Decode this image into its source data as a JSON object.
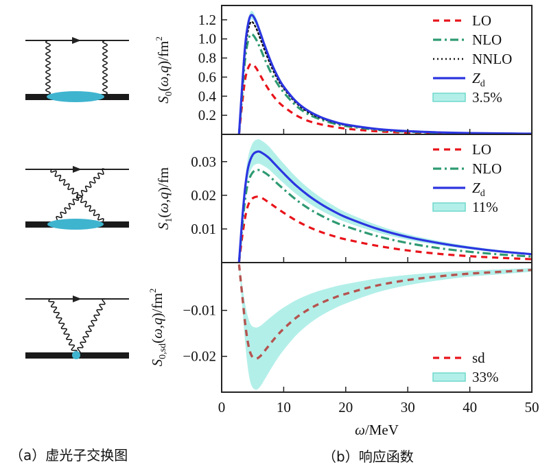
{
  "figure": {
    "caption_a": "（a）虚光子交换图",
    "caption_b": "（b）响应函数",
    "diagrams": [
      {
        "name": "box diagram",
        "type": "two-photon parallel exchange",
        "blob": "ellipse"
      },
      {
        "name": "crossed box diagram",
        "type": "two-photon crossed exchange",
        "blob": "ellipse"
      },
      {
        "name": "seagull diagram",
        "type": "two-photon exchange at a point vertex",
        "blob": "dot"
      }
    ],
    "colors": {
      "lo": "#e8141b",
      "nlo": "#2e9a72",
      "nnlo": "#111111",
      "zd": "#2b35e0",
      "band_fill": "#b3efe9",
      "band_edge": "#6fd8cc",
      "sd": "#b5534f",
      "diagram_blob": "#3fb4cf"
    }
  },
  "chart_data": [
    {
      "type": "line",
      "panel": "top",
      "ylabel": "S0(ω,q)/fm²",
      "ylabel_main": "S",
      "ylabel_sub": "0",
      "ylabel_rest": "(ω,q)/fm",
      "ylabel_sup": "2",
      "xlim": [
        0,
        50
      ],
      "ylim": [
        0,
        1.35
      ],
      "yticks": [
        0.2,
        0.4,
        0.6,
        0.8,
        1.0,
        1.2
      ],
      "ytick_labels": [
        "0.2",
        "0.4",
        "0.6",
        "0.8",
        "1.0",
        "1.2"
      ],
      "xticks": [
        10,
        20,
        30,
        40
      ],
      "legend_position": "top-right",
      "x": [
        2.8,
        3.3,
        3.8,
        4.3,
        4.8,
        5.5,
        6.3,
        7.0,
        8.0,
        9.0,
        10.0,
        12.0,
        14.0,
        16.0,
        18.0,
        20.0,
        25.0,
        30.0,
        35.0,
        40.0,
        45.0,
        50.0
      ],
      "series": [
        {
          "name": "LO",
          "style": "dashed",
          "values": [
            0.0,
            0.32,
            0.58,
            0.7,
            0.74,
            0.7,
            0.61,
            0.53,
            0.43,
            0.35,
            0.29,
            0.2,
            0.14,
            0.105,
            0.08,
            0.06,
            0.032,
            0.018,
            0.011,
            0.007,
            0.005,
            0.003
          ]
        },
        {
          "name": "NLO",
          "style": "dashdot",
          "values": [
            0.0,
            0.42,
            0.8,
            0.99,
            1.05,
            1.0,
            0.89,
            0.78,
            0.64,
            0.53,
            0.44,
            0.3,
            0.21,
            0.155,
            0.115,
            0.088,
            0.048,
            0.028,
            0.017,
            0.011,
            0.008,
            0.005
          ]
        },
        {
          "name": "NNLO",
          "style": "dotted",
          "values": [
            0.0,
            0.46,
            0.88,
            1.1,
            1.18,
            1.12,
            0.99,
            0.87,
            0.71,
            0.58,
            0.48,
            0.33,
            0.23,
            0.17,
            0.128,
            0.097,
            0.053,
            0.031,
            0.019,
            0.012,
            0.009,
            0.006
          ]
        },
        {
          "name": "Zd",
          "style": "solid",
          "values": [
            0.0,
            0.5,
            0.94,
            1.17,
            1.25,
            1.19,
            1.05,
            0.92,
            0.75,
            0.61,
            0.5,
            0.345,
            0.245,
            0.18,
            0.135,
            0.103,
            0.057,
            0.034,
            0.021,
            0.014,
            0.01,
            0.007
          ]
        }
      ],
      "band": {
        "name": "3.5%",
        "around": "Zd",
        "relative_uncertainty": 0.035
      },
      "legend": [
        {
          "label": "LO",
          "key": "lo",
          "style": "dashed"
        },
        {
          "label": "NLO",
          "key": "nlo",
          "style": "dashdot"
        },
        {
          "label": "NNLO",
          "key": "nnlo",
          "style": "dotted"
        },
        {
          "label": "Z",
          "sub": "d",
          "key": "zd",
          "style": "solid"
        },
        {
          "label": "3.5%",
          "key": "band",
          "style": "band"
        }
      ]
    },
    {
      "type": "line",
      "panel": "middle",
      "ylabel": "S1(ω,q)/fm",
      "ylabel_main": "S",
      "ylabel_sub": "1",
      "ylabel_rest": "(ω,q)/fm",
      "ylabel_sup": "",
      "xlim": [
        0,
        50
      ],
      "ylim": [
        0,
        0.0381
      ],
      "yticks": [
        0.01,
        0.02,
        0.03
      ],
      "ytick_labels": [
        "0.01",
        "0.02",
        "0.03"
      ],
      "xticks": [
        10,
        20,
        30,
        40
      ],
      "legend_position": "top-right",
      "x": [
        2.8,
        3.3,
        3.8,
        4.3,
        5.0,
        5.8,
        6.5,
        7.5,
        8.5,
        10.0,
        12.0,
        14.0,
        16.0,
        18.0,
        20.0,
        25.0,
        30.0,
        35.0,
        40.0,
        45.0,
        50.0
      ],
      "series": [
        {
          "name": "LO",
          "style": "dashed",
          "values": [
            0.0,
            0.0075,
            0.0135,
            0.0172,
            0.0191,
            0.0196,
            0.0192,
            0.018,
            0.0167,
            0.0148,
            0.0125,
            0.0106,
            0.0091,
            0.0079,
            0.0069,
            0.005,
            0.0036,
            0.0026,
            0.0019,
            0.0014,
            0.001
          ]
        },
        {
          "name": "NLO",
          "style": "dashdot",
          "values": [
            0.0,
            0.0105,
            0.019,
            0.024,
            0.0268,
            0.0275,
            0.0272,
            0.026,
            0.0243,
            0.0218,
            0.0187,
            0.0161,
            0.014,
            0.0122,
            0.0108,
            0.0079,
            0.0058,
            0.0043,
            0.0032,
            0.0024,
            0.0018
          ]
        },
        {
          "name": "Zd",
          "style": "solid",
          "values": [
            0.0,
            0.0125,
            0.0225,
            0.0285,
            0.032,
            0.033,
            0.0326,
            0.0313,
            0.0294,
            0.0265,
            0.0229,
            0.0199,
            0.0174,
            0.0153,
            0.0135,
            0.0101,
            0.0076,
            0.0058,
            0.0044,
            0.0033,
            0.0025
          ]
        }
      ],
      "band": {
        "name": "11%",
        "around": "Zd",
        "relative_uncertainty": 0.11
      },
      "legend": [
        {
          "label": "LO",
          "key": "lo",
          "style": "dashed"
        },
        {
          "label": "NLO",
          "key": "nlo",
          "style": "dashdot"
        },
        {
          "label": "Z",
          "sub": "d",
          "key": "zd",
          "style": "solid"
        },
        {
          "label": "11%",
          "key": "band",
          "style": "band"
        }
      ]
    },
    {
      "type": "line",
      "panel": "bottom",
      "ylabel": "S0,sd(ω,q)/fm²",
      "ylabel_main": "S",
      "ylabel_sub": "0,sd",
      "ylabel_rest": "(ω,q)/fm",
      "ylabel_sup": "2",
      "xlabel": "ω/MeV",
      "xlim": [
        0,
        50
      ],
      "ylim": [
        -0.0278,
        0.0004
      ],
      "yticks": [
        -0.01,
        -0.02
      ],
      "ytick_labels": [
        "−0.01",
        "−0.02"
      ],
      "xticks": [
        0,
        10,
        20,
        30,
        40,
        50
      ],
      "xtick_labels": [
        "0",
        "10",
        "20",
        "30",
        "40",
        "50"
      ],
      "legend_position": "bottom-right",
      "x": [
        2.8,
        3.3,
        3.8,
        4.3,
        4.8,
        5.5,
        6.2,
        7.0,
        8.0,
        9.0,
        10.0,
        12.0,
        14.0,
        16.0,
        18.0,
        20.0,
        25.0,
        30.0,
        35.0,
        40.0,
        45.0,
        50.0
      ],
      "series": [
        {
          "name": "sd",
          "style": "dashed",
          "values": [
            0.0,
            -0.0065,
            -0.013,
            -0.0175,
            -0.0198,
            -0.0205,
            -0.02,
            -0.0187,
            -0.017,
            -0.0154,
            -0.014,
            -0.0116,
            -0.0098,
            -0.0084,
            -0.0073,
            -0.0064,
            -0.0046,
            -0.0034,
            -0.0026,
            -0.002,
            -0.0016,
            -0.0012
          ]
        }
      ],
      "band": {
        "name": "33%",
        "around": "sd",
        "relative_uncertainty": 0.33
      },
      "legend": [
        {
          "label": "sd",
          "key": "lo",
          "style": "dashed"
        },
        {
          "label": "33%",
          "key": "band",
          "style": "band"
        }
      ]
    }
  ]
}
